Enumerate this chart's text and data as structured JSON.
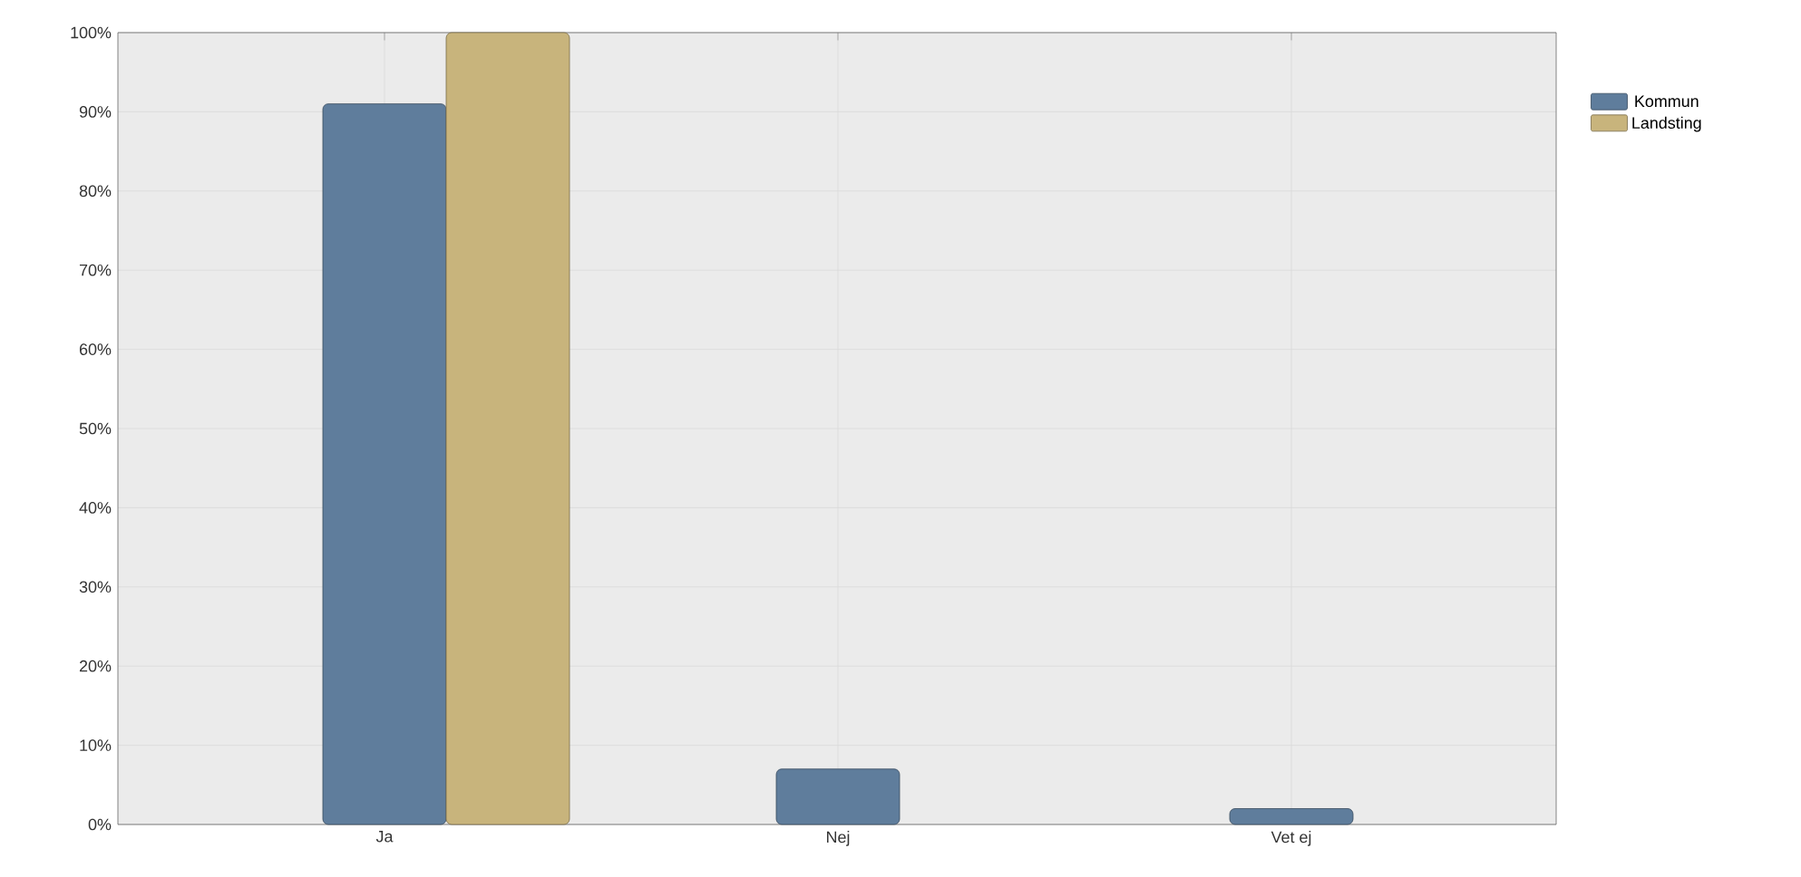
{
  "chart_data": {
    "type": "bar",
    "categories": [
      "Ja",
      "Nej",
      "Vet ej"
    ],
    "series": [
      {
        "name": "Kommun",
        "color": "#5f7d9c",
        "values": [
          91,
          7,
          2
        ]
      },
      {
        "name": "Landsting",
        "color": "#c8b47c",
        "values": [
          100,
          null,
          null
        ]
      }
    ],
    "ylim": [
      0,
      100
    ],
    "yticks": [
      {
        "value": 0,
        "label": "0%"
      },
      {
        "value": 10,
        "label": "10%"
      },
      {
        "value": 20,
        "label": "20%"
      },
      {
        "value": 30,
        "label": "30%"
      },
      {
        "value": 40,
        "label": "40%"
      },
      {
        "value": 50,
        "label": "50%"
      },
      {
        "value": 60,
        "label": "60%"
      },
      {
        "value": 70,
        "label": "70%"
      },
      {
        "value": 80,
        "label": "80%"
      },
      {
        "value": 90,
        "label": "90%"
      },
      {
        "value": 100,
        "label": "100%"
      }
    ],
    "grid": true,
    "legend": "top right"
  }
}
